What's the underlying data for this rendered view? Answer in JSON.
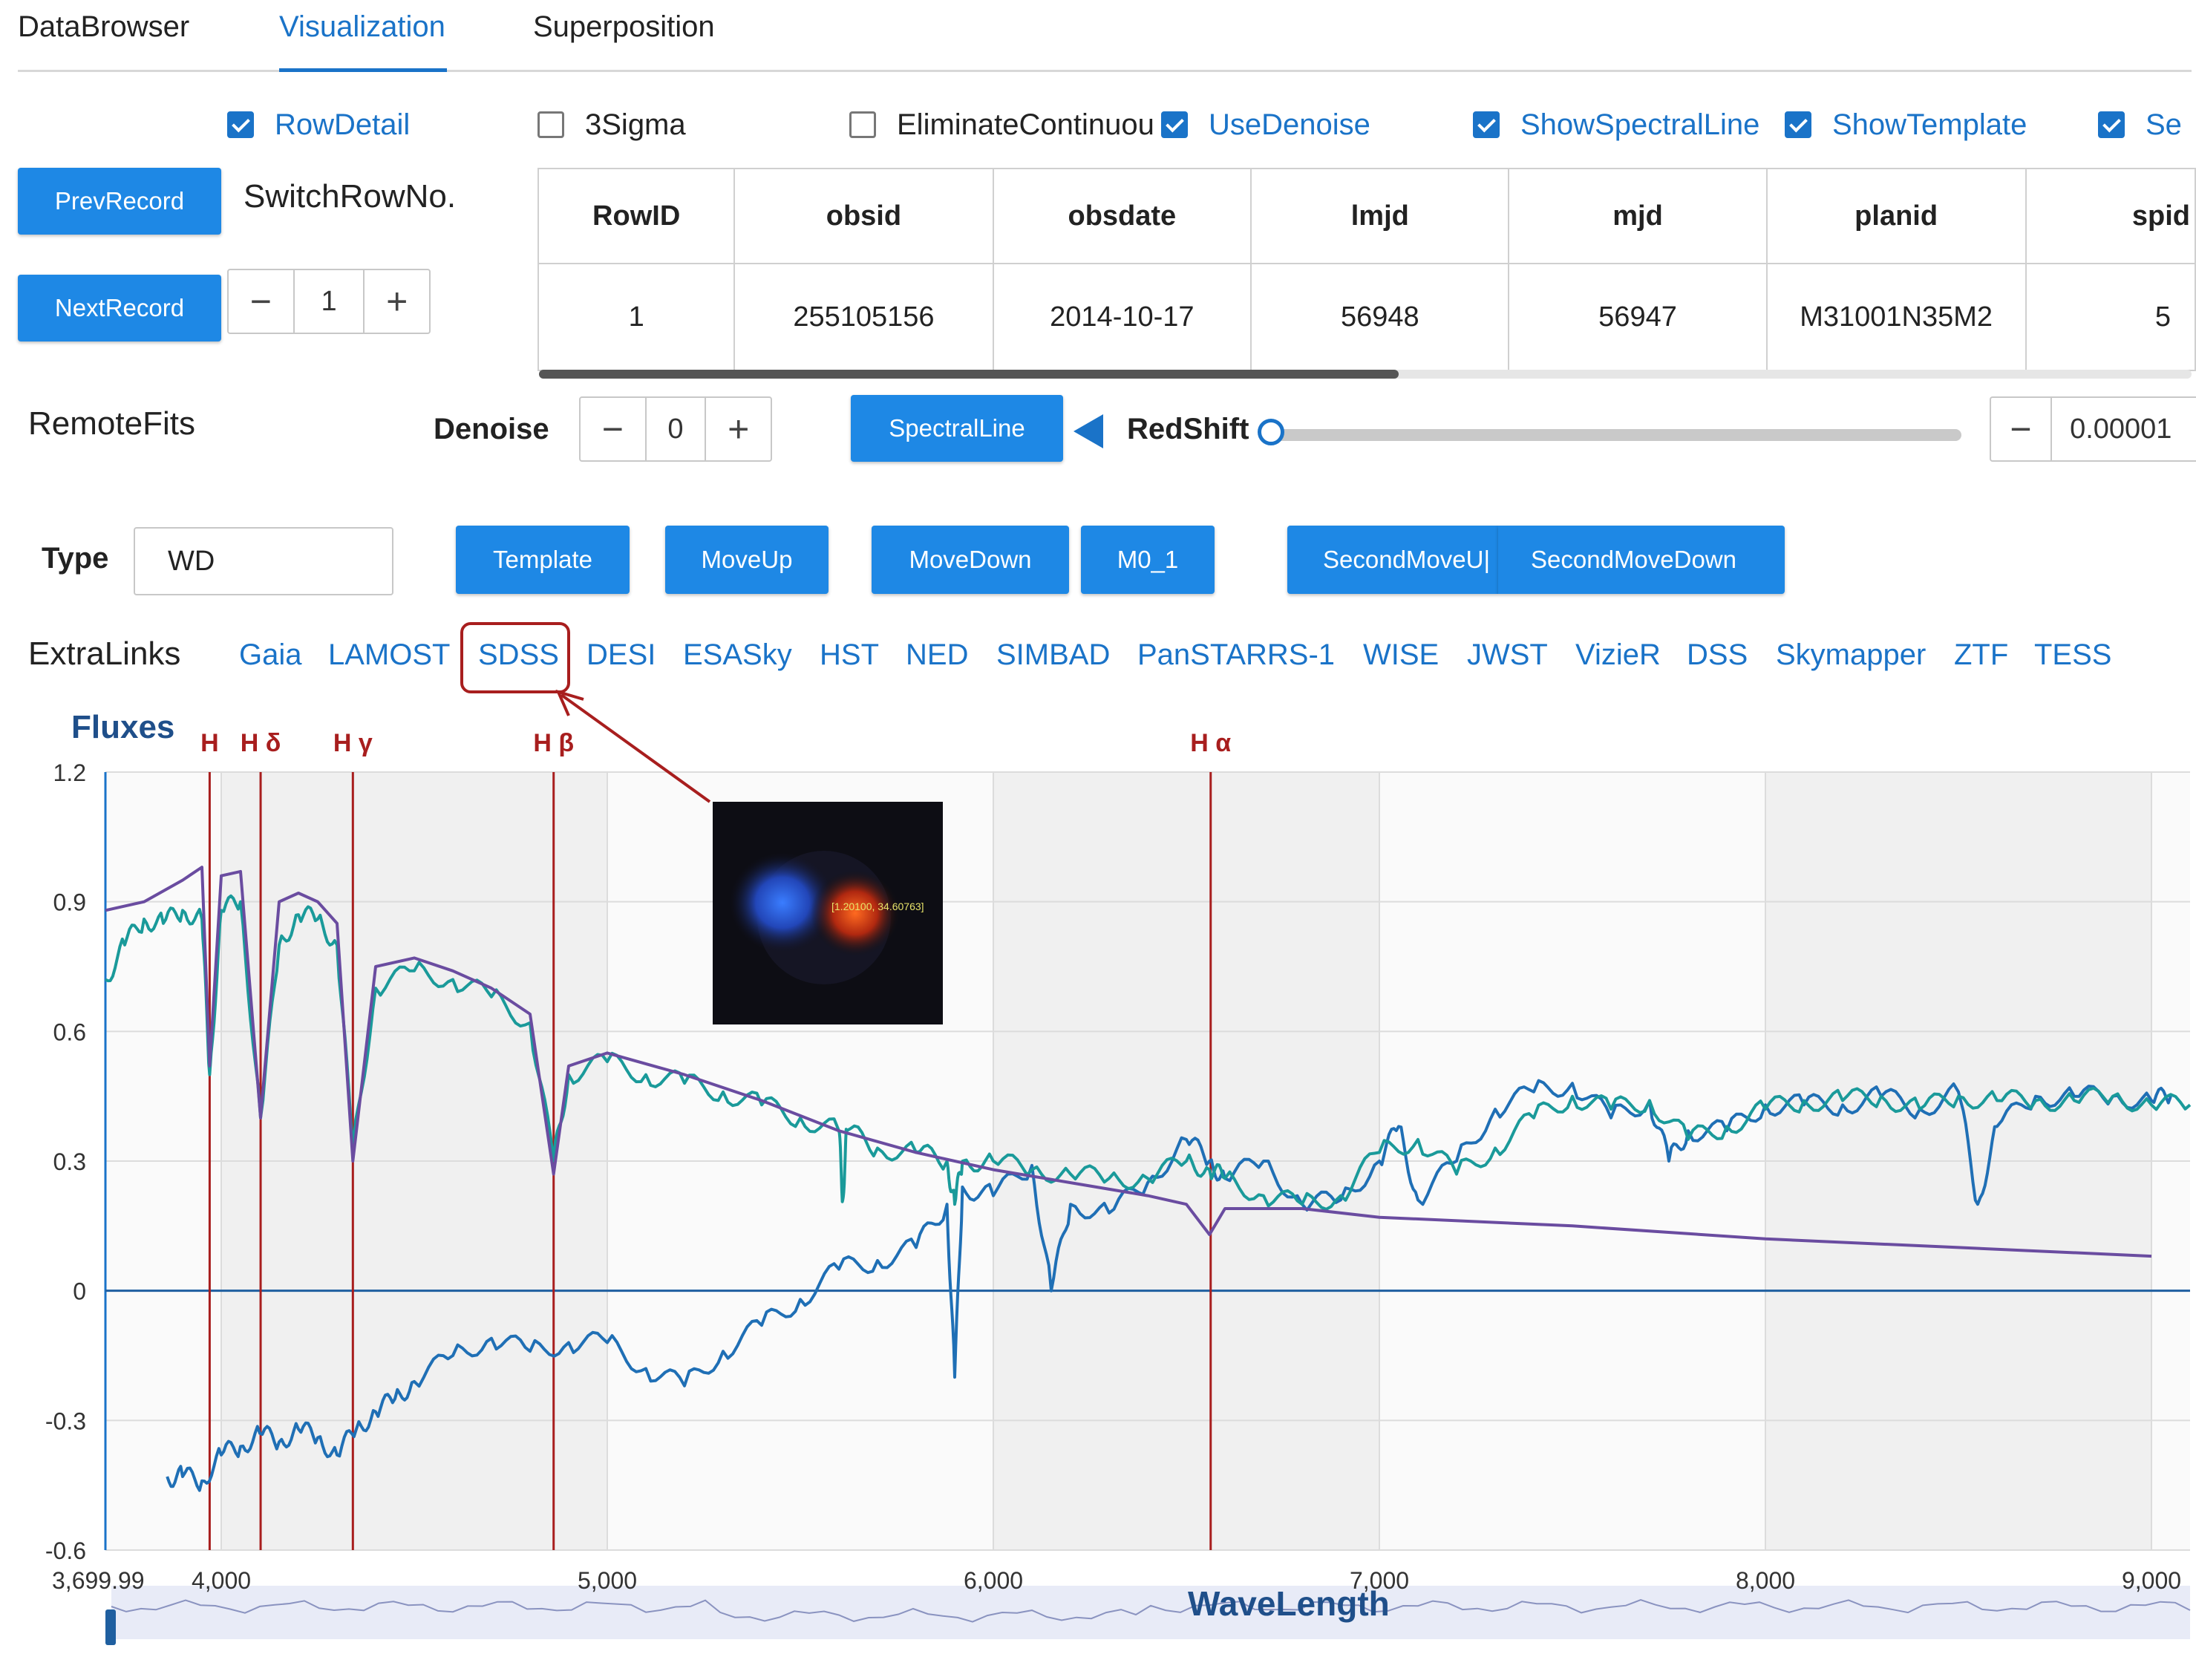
{
  "tabs": [
    {
      "label": "DataBrowser",
      "active": false
    },
    {
      "label": "Visualization",
      "active": true
    },
    {
      "label": "Superposition",
      "active": false
    }
  ],
  "checkboxes": [
    {
      "label": "RowDetail",
      "checked": true
    },
    {
      "label": "3Sigma",
      "checked": false
    },
    {
      "label": "EliminateContinuou",
      "checked": false
    },
    {
      "label": "UseDenoise",
      "checked": true
    },
    {
      "label": "ShowSpectralLine",
      "checked": true
    },
    {
      "label": "ShowTemplate",
      "checked": true
    },
    {
      "label": "Se",
      "checked": true
    }
  ],
  "record": {
    "prev_label": "PrevRecord",
    "next_label": "NextRecord",
    "switch_label": "SwitchRowNo.",
    "row_no": "1"
  },
  "table": {
    "headers": [
      "RowID",
      "obsid",
      "obsdate",
      "lmjd",
      "mjd",
      "planid",
      "spid"
    ],
    "rows": [
      [
        "1",
        "255105156",
        "2014-10-17",
        "56948",
        "56947",
        "M31001N35M2",
        "5"
      ]
    ]
  },
  "controls": {
    "remote_fits": "RemoteFits",
    "denoise_label": "Denoise",
    "denoise_value": "0",
    "spectral_line_label": "SpectralLine",
    "redshift_label": "RedShift",
    "redshift_slider_fraction": 0,
    "redshift_value": "0.00001",
    "type_label": "Type",
    "type_value": "WD",
    "minus": "−",
    "plus": "+"
  },
  "buttons": {
    "template": "Template",
    "move_up": "MoveUp",
    "move_down": "MoveDown",
    "m0_1": "M0_1",
    "second_move_up": "SecondMoveU|",
    "second_move_down": "SecondMoveDown"
  },
  "extra_links": {
    "label": "ExtraLinks",
    "links": [
      "Gaia",
      "LAMOST",
      "SDSS",
      "DESI",
      "ESASky",
      "HST",
      "NED",
      "SIMBAD",
      "PanSTARRS-1",
      "WISE",
      "JWST",
      "VizieR",
      "DSS",
      "Skymapper",
      "ZTF",
      "TESS"
    ],
    "highlighted": "SDSS"
  },
  "thumbnail": {
    "coord_text": "[1.20100, 34.60763]"
  },
  "colors": {
    "accent": "#1a73c8",
    "button": "#1e88e5",
    "spectral_line": "#a81e1e",
    "series_observed": "#1f6fb5",
    "series_denoised": "#1a9a9a",
    "series_template": "#6a4ca0"
  },
  "chart_data": {
    "type": "line",
    "ylabel": "Fluxes",
    "xlabel": "WaveLength",
    "xlim": [
      3699.99,
      9100
    ],
    "ylim": [
      -0.6,
      1.2
    ],
    "y_ticks": [
      "1.2",
      "0.9",
      "0.6",
      "0.3",
      "0",
      "-0.3",
      "-0.6"
    ],
    "x_ticks": [
      "3,699.99",
      "4,000",
      "5,000",
      "6,000",
      "7,000",
      "8,000",
      "9,000"
    ],
    "grid": true,
    "spectral_lines": [
      {
        "label": "H",
        "x": 3970
      },
      {
        "label": "H δ",
        "x": 4102
      },
      {
        "label": "H γ",
        "x": 4341
      },
      {
        "label": "H β",
        "x": 4861
      },
      {
        "label": "H α",
        "x": 6563
      }
    ],
    "series": [
      {
        "name": "",
        "role": "observed",
        "x": [
          3860,
          3900,
          3950,
          4000,
          4050,
          4100,
          4150,
          4200,
          4250,
          4300,
          4350,
          4400,
          4450,
          4500,
          4600,
          4700,
          4800,
          4900,
          5000,
          5100,
          5200,
          5300,
          5400,
          5500,
          5600,
          5700,
          5800,
          5880,
          5900,
          5920,
          6000,
          6100,
          6150,
          6200,
          6300,
          6400,
          6500,
          6560,
          6600,
          6700,
          6800,
          6900,
          7000,
          7050,
          7100,
          7200,
          7300,
          7400,
          7500,
          7600,
          7700,
          7750,
          7800,
          7900,
          8000,
          8100,
          8200,
          8300,
          8400,
          8500,
          8550,
          8600,
          8700,
          8800,
          8900,
          9000,
          9050
        ],
        "y": [
          -0.43,
          -0.43,
          -0.44,
          -0.38,
          -0.36,
          -0.33,
          -0.35,
          -0.32,
          -0.34,
          -0.38,
          -0.32,
          -0.28,
          -0.25,
          -0.21,
          -0.15,
          -0.11,
          -0.14,
          -0.12,
          -0.12,
          -0.18,
          -0.22,
          -0.14,
          -0.08,
          -0.02,
          0.05,
          0.07,
          0.1,
          0.2,
          -0.2,
          0.24,
          0.22,
          0.29,
          0.0,
          0.2,
          0.18,
          0.25,
          0.35,
          0.3,
          0.26,
          0.3,
          0.2,
          0.21,
          0.3,
          0.38,
          0.21,
          0.3,
          0.42,
          0.46,
          0.48,
          0.4,
          0.44,
          0.3,
          0.37,
          0.37,
          0.43,
          0.43,
          0.43,
          0.45,
          0.42,
          0.46,
          0.2,
          0.38,
          0.45,
          0.45,
          0.45,
          0.44,
          0.45
        ]
      },
      {
        "name": "",
        "role": "denoised",
        "x": [
          3700,
          3750,
          3800,
          3850,
          3900,
          3950,
          3970,
          4000,
          4050,
          4102,
          4150,
          4200,
          4250,
          4300,
          4341,
          4400,
          4500,
          4600,
          4700,
          4800,
          4861,
          4900,
          5000,
          5100,
          5200,
          5300,
          5400,
          5500,
          5600,
          5610,
          5620,
          5700,
          5800,
          5880,
          5900,
          5920,
          6000,
          6100,
          6200,
          6300,
          6400,
          6500,
          6560,
          6600,
          6700,
          6800,
          6900,
          7000,
          7100,
          7200,
          7300,
          7400,
          7500,
          7600,
          7700,
          7800,
          7900,
          8000,
          8100,
          8200,
          8300,
          8400,
          8500,
          8600,
          8700,
          8800,
          8900,
          9000,
          9100
        ],
        "y": [
          0.72,
          0.8,
          0.86,
          0.85,
          0.88,
          0.86,
          0.5,
          0.88,
          0.9,
          0.4,
          0.8,
          0.87,
          0.86,
          0.8,
          0.33,
          0.7,
          0.74,
          0.72,
          0.68,
          0.62,
          0.3,
          0.5,
          0.53,
          0.5,
          0.48,
          0.46,
          0.43,
          0.4,
          0.37,
          0.21,
          0.37,
          0.33,
          0.32,
          0.3,
          0.2,
          0.3,
          0.3,
          0.28,
          0.27,
          0.26,
          0.26,
          0.3,
          0.28,
          0.26,
          0.22,
          0.2,
          0.22,
          0.32,
          0.35,
          0.27,
          0.33,
          0.4,
          0.45,
          0.42,
          0.44,
          0.35,
          0.38,
          0.42,
          0.44,
          0.44,
          0.45,
          0.42,
          0.45,
          0.44,
          0.44,
          0.44,
          0.45,
          0.43,
          0.43
        ]
      },
      {
        "name": "",
        "role": "template",
        "x": [
          3700,
          3800,
          3900,
          3950,
          3970,
          4000,
          4050,
          4102,
          4150,
          4200,
          4250,
          4300,
          4341,
          4400,
          4500,
          4600,
          4700,
          4800,
          4861,
          4900,
          5000,
          5200,
          5400,
          5600,
          5800,
          6000,
          6200,
          6400,
          6500,
          6560,
          6600,
          6800,
          7000,
          7500,
          8000,
          8500,
          9000
        ],
        "y": [
          0.88,
          0.9,
          0.95,
          0.98,
          0.52,
          0.96,
          0.97,
          0.4,
          0.9,
          0.92,
          0.9,
          0.85,
          0.3,
          0.75,
          0.77,
          0.74,
          0.7,
          0.64,
          0.27,
          0.52,
          0.55,
          0.5,
          0.44,
          0.37,
          0.32,
          0.28,
          0.25,
          0.22,
          0.2,
          0.13,
          0.19,
          0.19,
          0.17,
          0.15,
          0.12,
          0.1,
          0.08
        ]
      }
    ]
  }
}
